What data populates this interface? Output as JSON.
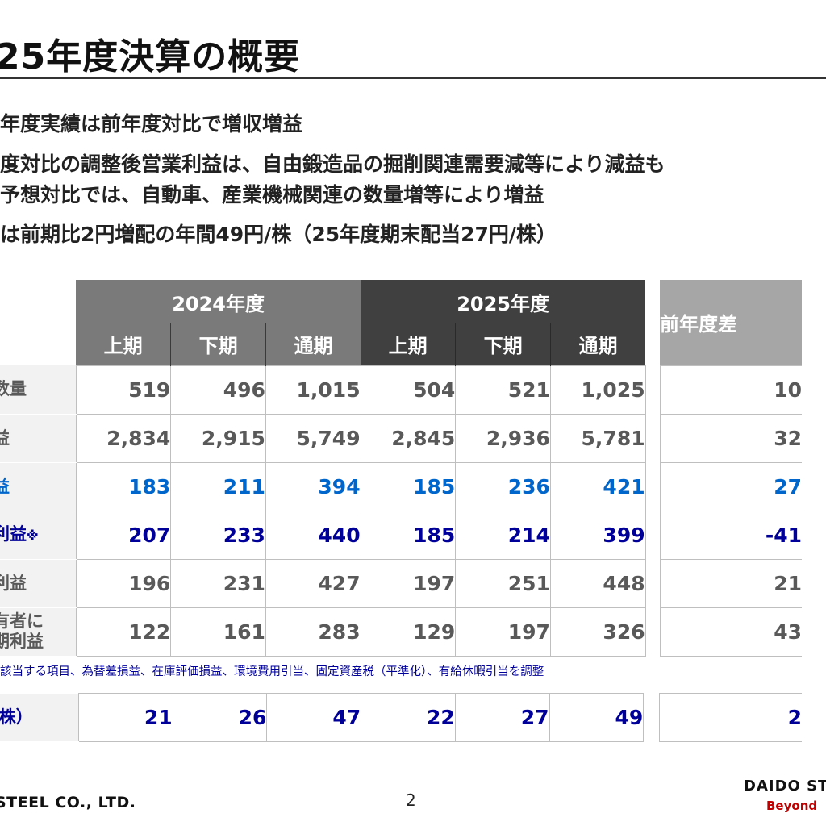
{
  "title": "25年度決算の概要",
  "bullets": [
    "年度実績は前年度対比で増収増益",
    "度対比の調整後営業利益は、自由鍛造品の掘削関連需要減等により減益も",
    "予想対比では、自動車、産業機械関連の数量増等により増益",
    "は前期比2円増配の年間49円/株（25年度期末配当27円/株）"
  ],
  "table": {
    "year_2024": "2024年度",
    "year_2025": "2025年度",
    "diff_header": "前年度差",
    "sub_headers": [
      "上期",
      "下期",
      "通期",
      "上期",
      "下期",
      "通期"
    ],
    "rows": [
      {
        "label": "上数量",
        "values": [
          "519",
          "496",
          "1,015",
          "504",
          "521",
          "1,025"
        ],
        "diff": "10"
      },
      {
        "label": "収益",
        "values": [
          "2,834",
          "2,915",
          "5,749",
          "2,845",
          "2,936",
          "5,781"
        ],
        "diff": "32"
      },
      {
        "label": "利益",
        "values": [
          "183",
          "211",
          "394",
          "185",
          "236",
          "421"
        ],
        "diff": "27"
      },
      {
        "label": "業利益",
        "mark": "※",
        "values": [
          "207",
          "233",
          "440",
          "185",
          "214",
          "399"
        ],
        "diff": "-41"
      },
      {
        "label": "前利益",
        "values": [
          "196",
          "231",
          "427",
          "197",
          "251",
          "448"
        ],
        "diff": "21"
      },
      {
        "label_line1": "所有者に",
        "label_line2": "当期利益",
        "values": [
          "122",
          "161",
          "283",
          "129",
          "197",
          "326"
        ],
        "diff": "43"
      }
    ]
  },
  "note": "該当する項目、為替差損益、在庫評価損益、環境費用引当、固定資産税（平準化）、有給休暇引当を調整",
  "dividend": {
    "label": "円/株）",
    "values": [
      "21",
      "26",
      "47",
      "22",
      "27",
      "49"
    ],
    "diff": "2"
  },
  "footer": {
    "company": "STEEL  CO., LTD.",
    "page": "2",
    "brand": "DAIDO ST",
    "tagline": "Beyond"
  },
  "colors": {
    "header_2024": "#7a7a7a",
    "header_2025": "#404040",
    "header_diff": "#a6a6a6",
    "blue": "#0066cc",
    "navy": "#000099"
  }
}
